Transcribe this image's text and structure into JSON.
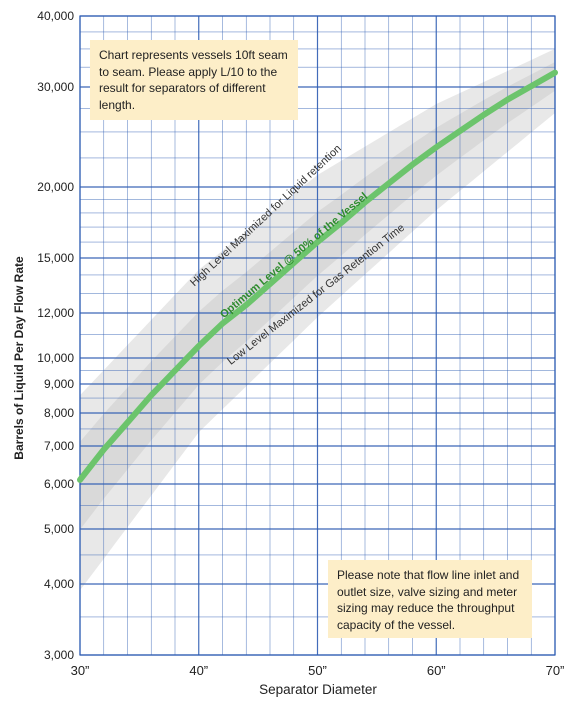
{
  "chart_data": {
    "type": "line",
    "title": "",
    "xlabel": "Separator Diameter",
    "ylabel": "Barrels of Liquid Per Day Flow Rate",
    "x_ticks": [
      "30”",
      "40”",
      "50”",
      "60”",
      "70”"
    ],
    "y_ticks": [
      "3,000",
      "4,000",
      "5,000",
      "6,000",
      "7,000",
      "8,000",
      "9,000",
      "10,000",
      "12,000",
      "15,000",
      "20,000",
      "30,000",
      "40,000"
    ],
    "y_tick_values": [
      3000,
      4000,
      5000,
      6000,
      7000,
      8000,
      9000,
      10000,
      12000,
      15000,
      20000,
      30000,
      40000
    ],
    "y_scale": "log",
    "xlim": [
      30,
      70
    ],
    "ylim": [
      3000,
      40000
    ],
    "grid": true,
    "series": [
      {
        "name": "Optimum Level @ 50% of the Vessel",
        "x": [
          30,
          32,
          34,
          36,
          38,
          40,
          42,
          44,
          46,
          48,
          50,
          52,
          54,
          56,
          58,
          60,
          62,
          64,
          66,
          68,
          70
        ],
        "values": [
          6100,
          6900,
          7700,
          8600,
          9500,
          10500,
          11500,
          12400,
          13500,
          14700,
          16000,
          17300,
          18800,
          20300,
          21900,
          23500,
          25100,
          26800,
          28500,
          30100,
          31800
        ]
      },
      {
        "name": "High  Level Maximized for Liquid retention",
        "x": [
          30,
          40,
          50,
          60,
          70
        ],
        "values": [
          8600,
          14300,
          21000,
          28000,
          35000
        ]
      },
      {
        "name": "Low Level Maximized for Gas Retention Time",
        "x": [
          30,
          40,
          50,
          60,
          70
        ],
        "values": [
          3900,
          7400,
          11800,
          18200,
          27000
        ]
      }
    ]
  },
  "annotations": {
    "top_note": "Chart represents vessels 10ft seam to seam. Please apply L/10 to the result for separators of different length.",
    "bottom_note": "Please note that flow line inlet and outlet size, valve sizing and meter sizing may reduce the throughput capacity of the vessel."
  },
  "colors": {
    "grid": "#2e5db3",
    "optimum_line": "#6cc46c",
    "band_outer": "#e8e8e8",
    "band_inner": "#d9d9d9",
    "note_bg": "#fdeec8"
  }
}
